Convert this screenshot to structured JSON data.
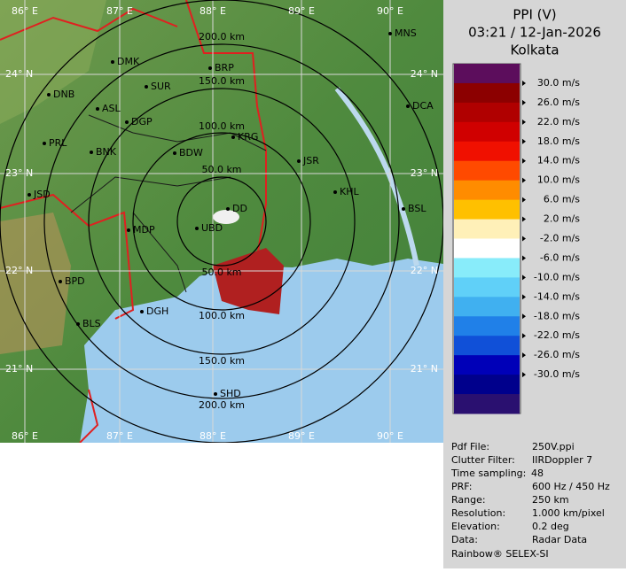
{
  "header": {
    "product": "PPI (V)",
    "datetime": "03:21 / 12-Jan-2026",
    "station": "Kolkata"
  },
  "legend": {
    "labels": [
      "30.0 m/s",
      "26.0 m/s",
      "22.0 m/s",
      "18.0 m/s",
      "14.0 m/s",
      "10.0 m/s",
      "6.0 m/s",
      "2.0 m/s",
      "-2.0 m/s",
      "-6.0 m/s",
      "-10.0 m/s",
      "-14.0 m/s",
      "-18.0 m/s",
      "-22.0 m/s",
      "-26.0 m/s",
      "-30.0 m/s"
    ],
    "colors": [
      "#5c0d5c",
      "#8c0000",
      "#b00000",
      "#d00000",
      "#f01000",
      "#ff4a00",
      "#ff8c00",
      "#ffc000",
      "#fff0b8",
      "#ffffff",
      "#88ecfa",
      "#60d0f8",
      "#40b0f0",
      "#2080e8",
      "#1050d8",
      "#0000b8",
      "#00008c",
      "#2a1070"
    ]
  },
  "map": {
    "lon_labels": [
      "86° E",
      "87° E",
      "88° E",
      "89° E",
      "90° E"
    ],
    "lat_labels": [
      "24° N",
      "23° N",
      "22° N",
      "21° N"
    ],
    "range_labels": [
      "200.0 km",
      "150.0 km",
      "100.0 km",
      "50.0 km"
    ],
    "cities": [
      "MNS",
      "DMK",
      "BRP",
      "SUR",
      "DNB",
      "ASL",
      "DGP",
      "DCA",
      "KRG",
      "PRL",
      "BNK",
      "BDW",
      "JSR",
      "KHL",
      "JSD",
      "DD",
      "BSL",
      "MDP",
      "UBD",
      "BPD",
      "BLS",
      "DGH",
      "SHD"
    ]
  },
  "info": {
    "rows": [
      [
        "Pdf File:",
        "250V.ppi"
      ],
      [
        "Clutter Filter:",
        "IIRDoppler 7"
      ],
      [
        "Time sampling:",
        "48"
      ],
      [
        "PRF:",
        "600 Hz / 450 Hz"
      ],
      [
        "Range:",
        "250 km"
      ],
      [
        "Resolution:",
        "1.000 km/pixel"
      ],
      [
        "Elevation:",
        "0.2 deg"
      ],
      [
        "Data:",
        "Radar Data"
      ]
    ],
    "footer": "Rainbow® SELEX-SI"
  }
}
